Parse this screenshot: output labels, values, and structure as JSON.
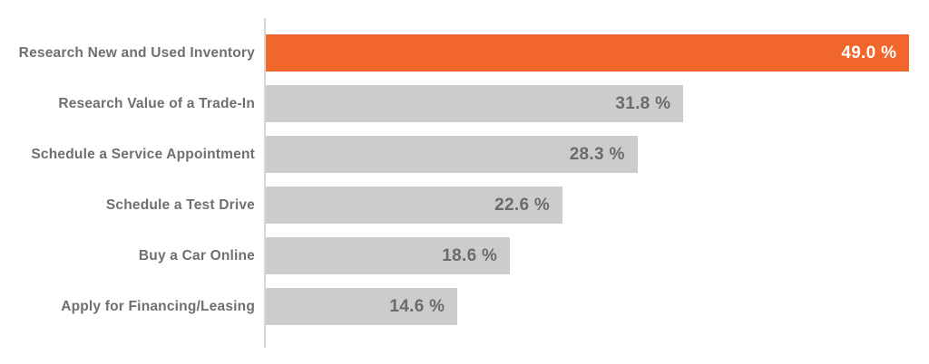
{
  "chart_data": {
    "type": "bar",
    "orientation": "horizontal",
    "title": "",
    "xlabel": "",
    "ylabel": "",
    "categories": [
      "Research New and Used Inventory",
      "Research Value of a Trade-In",
      "Schedule a Service Appointment",
      "Schedule a Test Drive",
      "Buy a Car Online",
      "Apply for Financing/Leasing"
    ],
    "values": [
      49.0,
      31.8,
      28.3,
      22.6,
      18.6,
      14.6
    ],
    "value_labels": [
      "49.0 %",
      "31.8 %",
      "28.3 %",
      "22.6 %",
      "18.6 %",
      "14.6 %"
    ],
    "xlim": [
      0,
      50.5
    ],
    "grid": false,
    "legend": false,
    "highlight_index": 0,
    "colors": {
      "highlight_bar": "#F1662B",
      "default_bar": "#CCCCCC",
      "highlight_value_text": "#FFFFFF",
      "default_value_text": "#6B6B6B",
      "category_text": "#6E6F72",
      "axis_line": "#D8D8D8",
      "background": "#FFFFFF"
    }
  }
}
